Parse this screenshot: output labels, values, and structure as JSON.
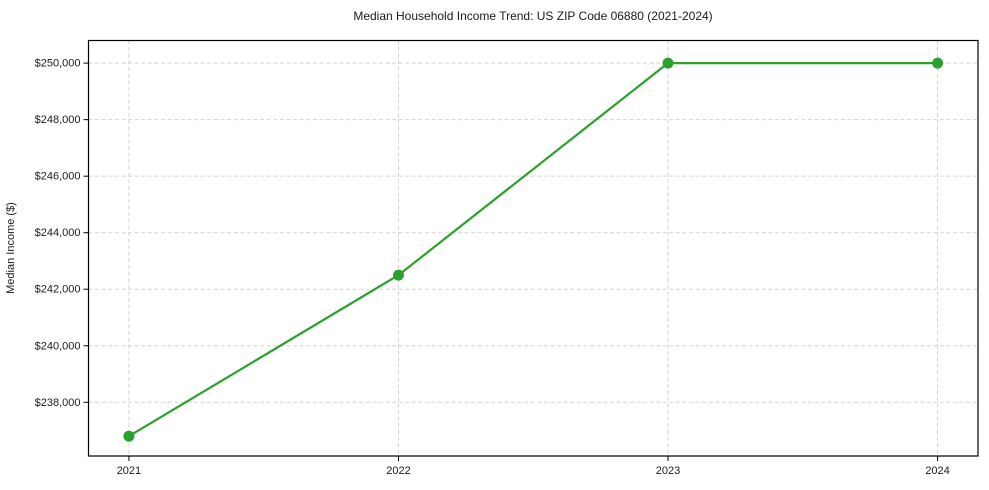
{
  "chart_data": {
    "type": "line",
    "title": "Median Household Income Trend: US ZIP Code 06880 (2021-2024)",
    "xlabel": "",
    "ylabel": "Median Income ($)",
    "x": [
      2021,
      2022,
      2023,
      2024
    ],
    "x_tick_labels": [
      "2021",
      "2022",
      "2023",
      "2024"
    ],
    "series": [
      {
        "name": "median-household-income",
        "values": [
          236800,
          242500,
          250000,
          250000
        ],
        "color": "#2ca02c",
        "marker": "circle"
      }
    ],
    "xlim": [
      2020.85,
      2024.15
    ],
    "ylim": [
      236100,
      250800
    ],
    "yticks": [
      238000,
      240000,
      242000,
      244000,
      246000,
      248000,
      250000
    ],
    "ytick_labels": [
      "$238,000",
      "$240,000",
      "$242,000",
      "$244,000",
      "$246,000",
      "$248,000",
      "$250,000"
    ],
    "grid": true,
    "grid_style": "dashed",
    "legend": "none",
    "colors": {
      "line": "#2ca02c",
      "grid": "#d4d4d4",
      "spine": "#000000",
      "text": "#1a1a1a",
      "background": "#ffffff"
    }
  }
}
